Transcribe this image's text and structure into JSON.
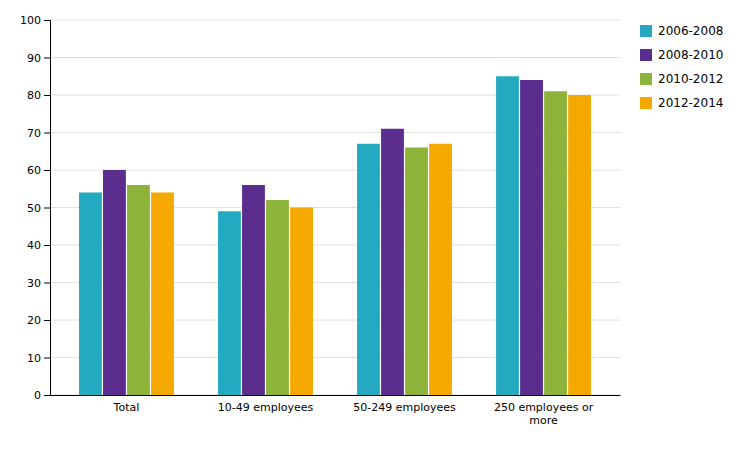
{
  "chart_data": {
    "type": "bar",
    "categories": [
      "Total",
      "10-49 employees",
      "50-249 employees",
      "250 employees or\nmore"
    ],
    "series": [
      {
        "name": "2006-2008",
        "color": "#23a9c0",
        "values": [
          54,
          49,
          67,
          85
        ]
      },
      {
        "name": "2008-2010",
        "color": "#5b2d8e",
        "values": [
          60,
          56,
          71,
          84
        ]
      },
      {
        "name": "2010-2012",
        "color": "#8db33a",
        "values": [
          56,
          52,
          66,
          81
        ]
      },
      {
        "name": "2012-2014",
        "color": "#f5a800",
        "values": [
          54,
          50,
          67,
          80
        ]
      }
    ],
    "ylim": [
      0,
      100
    ],
    "yticks": [
      0,
      10,
      20,
      30,
      40,
      50,
      60,
      70,
      80,
      90,
      100
    ],
    "grid": true,
    "legend": "right"
  }
}
